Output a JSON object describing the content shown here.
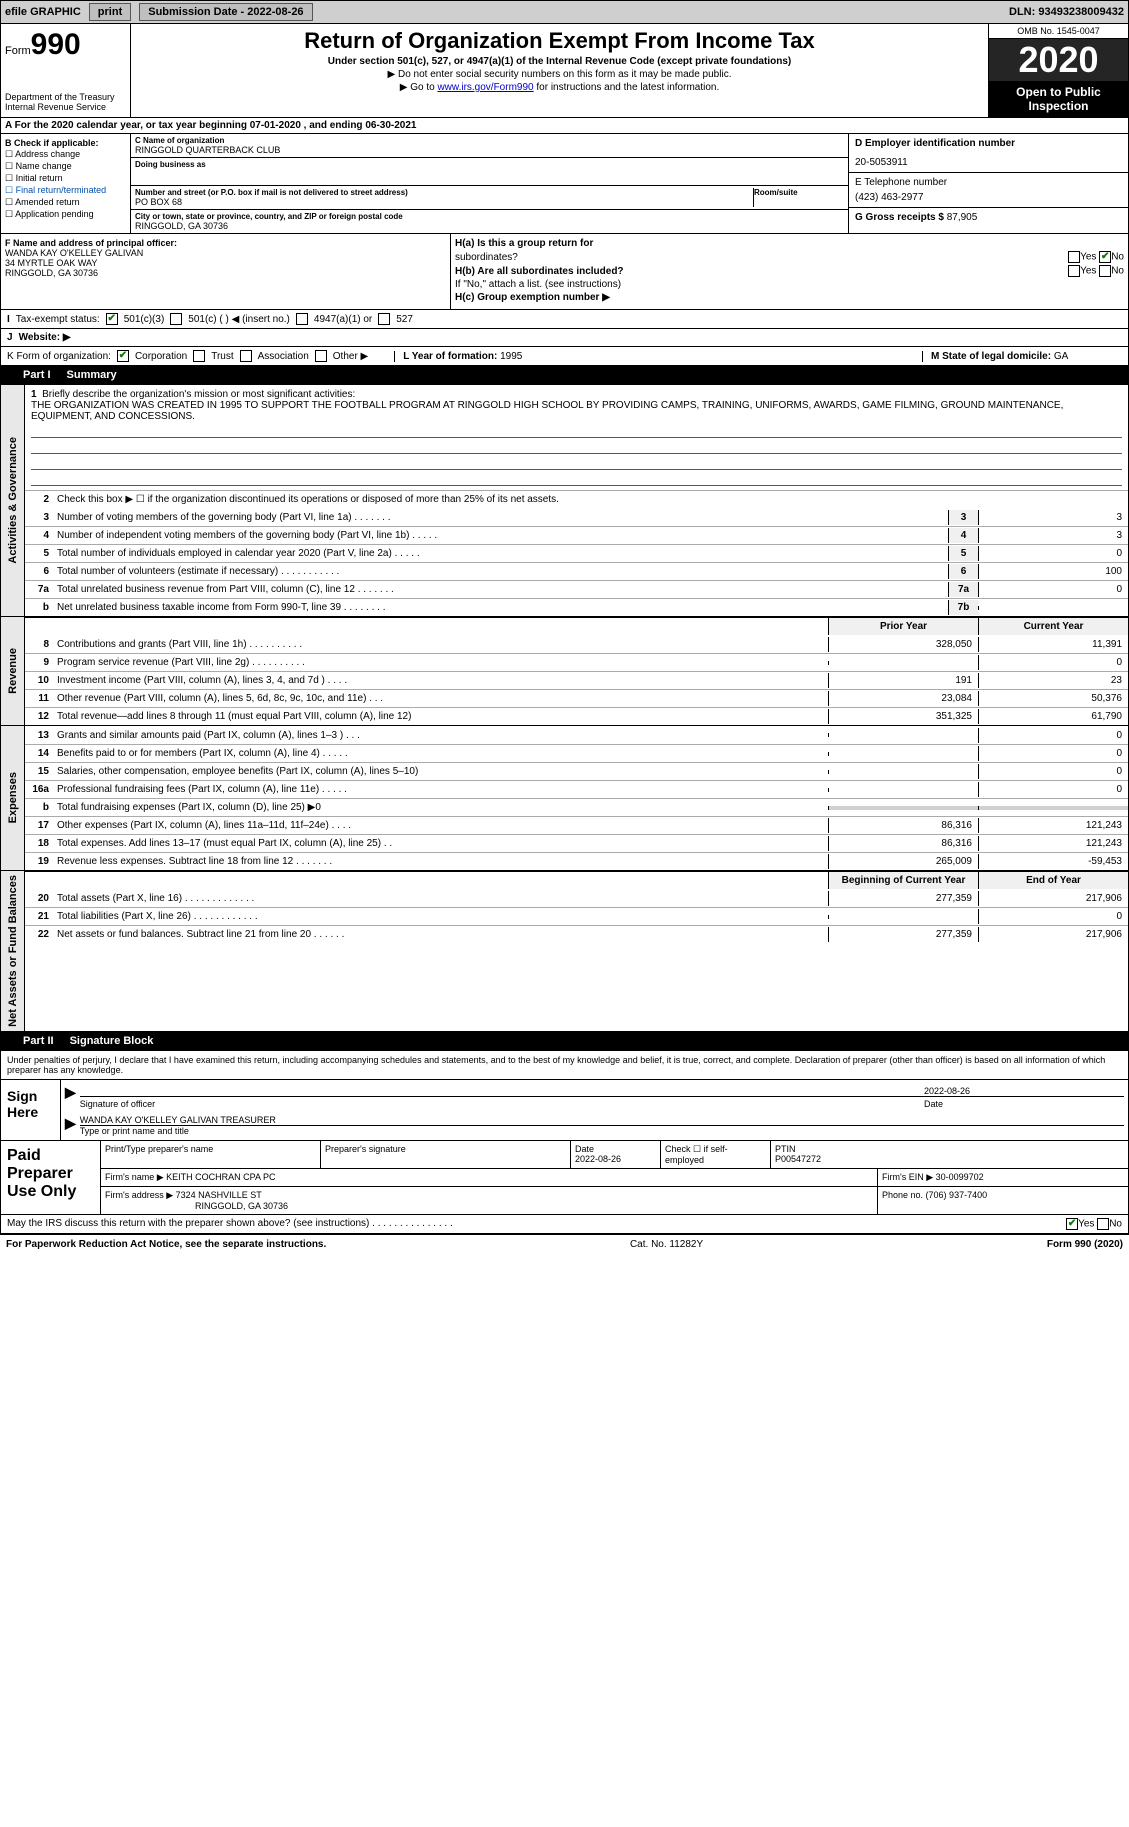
{
  "topbar": {
    "efile": "efile GRAPHIC",
    "print": "print",
    "sub_label": "Submission Date - ",
    "sub_date": "2022-08-26",
    "dln_label": "DLN: ",
    "dln": "93493238009432"
  },
  "header": {
    "form_word": "Form",
    "form_num": "990",
    "dept": "Department of the Treasury",
    "irs": "Internal Revenue Service",
    "title": "Return of Organization Exempt From Income Tax",
    "sub": "Under section 501(c), 527, or 4947(a)(1) of the Internal Revenue Code (except private foundations)",
    "note1": "▶ Do not enter social security numbers on this form as it may be made public.",
    "note2_pre": "▶ Go to ",
    "note2_link": "www.irs.gov/Form990",
    "note2_post": " for instructions and the latest information.",
    "omb": "OMB No. 1545-0047",
    "year": "2020",
    "open": "Open to Public Inspection"
  },
  "tyline": "A For the 2020 calendar year, or tax year beginning 07-01-2020   , and ending 06-30-2021",
  "b": {
    "hd": "B Check if applicable:",
    "i1": "Address change",
    "i2": "Name change",
    "i3": "Initial return",
    "i4": "Final return/terminated",
    "i5": "Amended return",
    "i6": "Application pending"
  },
  "c": {
    "name_lab": "C Name of organization",
    "name": "RINGGOLD QUARTERBACK CLUB",
    "dba_lab": "Doing business as",
    "dba": "",
    "addr_lab": "Number and street (or P.O. box if mail is not delivered to street address)",
    "addr": "PO BOX 68",
    "room_lab": "Room/suite",
    "city_lab": "City or town, state or province, country, and ZIP or foreign postal code",
    "city": "RINGGOLD, GA  30736"
  },
  "d": {
    "ein_lab": "D Employer identification number",
    "ein": "20-5053911",
    "tel_lab": "E Telephone number",
    "tel": "(423) 463-2977",
    "gross_lab": "G Gross receipts $ ",
    "gross": "87,905"
  },
  "f": {
    "lab": "F Name and address of principal officer:",
    "name": "WANDA KAY O'KELLEY GALIVAN",
    "addr1": "34 MYRTLE OAK WAY",
    "addr2": "RINGGOLD, GA  30736"
  },
  "h": {
    "a_lab": "H(a)  Is this a group return for",
    "a_sub": "subordinates?",
    "b_lab": "H(b)  Are all subordinates included?",
    "b_note": "If \"No,\" attach a list. (see instructions)",
    "c_lab": "H(c)  Group exemption number ▶",
    "yes": "Yes",
    "no": "No"
  },
  "i": {
    "lab": "Tax-exempt status:",
    "o1": "501(c)(3)",
    "o2": "501(c) (  ) ◀ (insert no.)",
    "o3": "4947(a)(1) or",
    "o4": "527"
  },
  "j_lab": "Website: ▶",
  "k": {
    "lab": "K Form of organization:",
    "o1": "Corporation",
    "o2": "Trust",
    "o3": "Association",
    "o4": "Other ▶"
  },
  "l_lab": "L Year of formation: ",
  "l_val": "1995",
  "m_lab": "M State of legal domicile: ",
  "m_val": "GA",
  "part1": {
    "tag": "Part I",
    "title": "Summary",
    "side_gov": "Activities & Governance",
    "side_rev": "Revenue",
    "side_exp": "Expenses",
    "side_net": "Net Assets or Fund Balances",
    "l1_lab": "Briefly describe the organization's mission or most significant activities:",
    "l1_text": "THE ORGANIZATION WAS CREATED IN 1995 TO SUPPORT THE FOOTBALL PROGRAM AT RINGGOLD HIGH SCHOOL BY PROVIDING CAMPS, TRAINING, UNIFORMS, AWARDS, GAME FILMING, GROUND MAINTENANCE, EQUIPMENT, AND CONCESSIONS.",
    "l2": "Check this box ▶ ☐  if the organization discontinued its operations or disposed of more than 25% of its net assets.",
    "prior": "Prior Year",
    "current": "Current Year",
    "boy": "Beginning of Current Year",
    "eoy": "End of Year",
    "rows_gov": [
      {
        "n": "3",
        "d": "Number of voting members of the governing body (Part VI, line 1a)  .    .    .    .    .    .    .",
        "b": "3",
        "v": "3"
      },
      {
        "n": "4",
        "d": "Number of independent voting members of the governing body (Part VI, line 1b)  .    .    .    .    .",
        "b": "4",
        "v": "3"
      },
      {
        "n": "5",
        "d": "Total number of individuals employed in calendar year 2020 (Part V, line 2a)  .    .    .    .    .",
        "b": "5",
        "v": "0"
      },
      {
        "n": "6",
        "d": "Total number of volunteers (estimate if necessary)  .    .    .    .    .    .    .    .    .    .    .",
        "b": "6",
        "v": "100"
      },
      {
        "n": "7a",
        "d": "Total unrelated business revenue from Part VIII, column (C), line 12  .    .    .    .    .    .    .",
        "b": "7a",
        "v": "0"
      },
      {
        "n": "b",
        "d": "Net unrelated business taxable income from Form 990-T, line 39  .    .    .    .    .    .    .    .",
        "b": "7b",
        "v": ""
      }
    ],
    "rows_rev": [
      {
        "n": "8",
        "d": "Contributions and grants (Part VIII, line 1h)  .    .    .    .    .    .    .    .    .    .",
        "p": "328,050",
        "c": "11,391"
      },
      {
        "n": "9",
        "d": "Program service revenue (Part VIII, line 2g)  .    .    .    .    .    .    .    .    .    .",
        "p": "",
        "c": "0"
      },
      {
        "n": "10",
        "d": "Investment income (Part VIII, column (A), lines 3, 4, and 7d )  .    .    .    .",
        "p": "191",
        "c": "23"
      },
      {
        "n": "11",
        "d": "Other revenue (Part VIII, column (A), lines 5, 6d, 8c, 9c, 10c, and 11e)  .    .    .",
        "p": "23,084",
        "c": "50,376"
      },
      {
        "n": "12",
        "d": "Total revenue—add lines 8 through 11 (must equal Part VIII, column (A), line 12)",
        "p": "351,325",
        "c": "61,790"
      }
    ],
    "rows_exp": [
      {
        "n": "13",
        "d": "Grants and similar amounts paid (Part IX, column (A), lines 1–3 )  .    .    .",
        "p": "",
        "c": "0"
      },
      {
        "n": "14",
        "d": "Benefits paid to or for members (Part IX, column (A), line 4)  .    .    .    .    .",
        "p": "",
        "c": "0"
      },
      {
        "n": "15",
        "d": "Salaries, other compensation, employee benefits (Part IX, column (A), lines 5–10)",
        "p": "",
        "c": "0"
      },
      {
        "n": "16a",
        "d": "Professional fundraising fees (Part IX, column (A), line 11e)  .    .    .    .    .",
        "p": "",
        "c": "0"
      },
      {
        "n": "b",
        "d": "Total fundraising expenses (Part IX, column (D), line 25) ▶0",
        "p": "shade",
        "c": "shade"
      },
      {
        "n": "17",
        "d": "Other expenses (Part IX, column (A), lines 11a–11d, 11f–24e)  .    .    .    .",
        "p": "86,316",
        "c": "121,243"
      },
      {
        "n": "18",
        "d": "Total expenses. Add lines 13–17 (must equal Part IX, column (A), line 25)  .    .",
        "p": "86,316",
        "c": "121,243"
      },
      {
        "n": "19",
        "d": "Revenue less expenses. Subtract line 18 from line 12  .    .    .    .    .    .    .",
        "p": "265,009",
        "c": "-59,453"
      }
    ],
    "rows_net": [
      {
        "n": "20",
        "d": "Total assets (Part X, line 16)  .    .    .    .    .    .    .    .    .    .    .    .    .",
        "p": "277,359",
        "c": "217,906"
      },
      {
        "n": "21",
        "d": "Total liabilities (Part X, line 26)  .    .    .    .    .    .    .    .    .    .    .    .",
        "p": "",
        "c": "0"
      },
      {
        "n": "22",
        "d": "Net assets or fund balances. Subtract line 21 from line 20  .    .    .    .    .    .",
        "p": "277,359",
        "c": "217,906"
      }
    ]
  },
  "part2": {
    "tag": "Part II",
    "title": "Signature Block",
    "penalty": "Under penalties of perjury, I declare that I have examined this return, including accompanying schedules and statements, and to the best of my knowledge and belief, it is true, correct, and complete. Declaration of preparer (other than officer) is based on all information of which preparer has any knowledge.",
    "sign_here": "Sign Here",
    "sig_off": "Signature of officer",
    "sig_date_lab": "Date",
    "sig_date": "2022-08-26",
    "off_name": "WANDA KAY O'KELLEY GALIVAN  TREASURER",
    "off_sub": "Type or print name and title",
    "paid_lab": "Paid Preparer Use Only",
    "pp_name_lab": "Print/Type preparer's name",
    "pp_name": "",
    "pp_sig_lab": "Preparer's signature",
    "pp_date_lab": "Date",
    "pp_date": "2022-08-26",
    "pp_self": "Check ☐  if self-employed",
    "ptin_lab": "PTIN",
    "ptin": "P00547272",
    "firm_name_lab": "Firm's name    ▶ ",
    "firm_name": "KEITH COCHRAN CPA PC",
    "firm_ein_lab": "Firm's EIN ▶ ",
    "firm_ein": "30-0099702",
    "firm_addr_lab": "Firm's address ▶ ",
    "firm_addr1": "7324 NASHVILLE ST",
    "firm_addr2": "RINGGOLD, GA  30736",
    "phone_lab": "Phone no. ",
    "phone": "(706) 937-7400",
    "discuss": "May the IRS discuss this return with the preparer shown above? (see instructions)  .    .    .    .    .    .    .    .    .    .    .    .    .    .    .",
    "yes": "Yes",
    "no": "No"
  },
  "foot": {
    "left": "For Paperwork Reduction Act Notice, see the separate instructions.",
    "mid": "Cat. No. 11282Y",
    "right": "Form 990 (2020)"
  }
}
